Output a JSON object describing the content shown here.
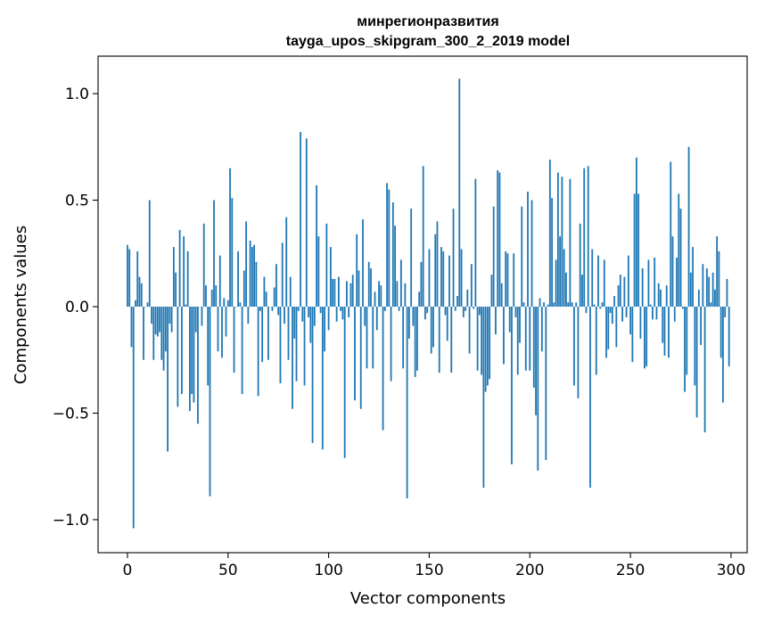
{
  "chart_data": {
    "type": "bar",
    "title": [
      "минрегионразвития",
      "tayga_upos_skipgram_300_2_2019 model"
    ],
    "xlabel": "Vector components",
    "ylabel": "Components values",
    "xlim": [
      -14.6,
      308
    ],
    "ylim": [
      -1.155,
      1.176
    ],
    "xticks": [
      0,
      50,
      100,
      150,
      200,
      250,
      300
    ],
    "xtick_labels": [
      "0",
      "50",
      "100",
      "150",
      "200",
      "250",
      "300"
    ],
    "yticks": [
      -1.0,
      -0.5,
      0.0,
      0.5,
      1.0
    ],
    "ytick_labels": [
      "−1.0",
      "−0.5",
      "0.0",
      "0.5",
      "1.0"
    ],
    "grid": false,
    "color": "#1f77b4",
    "values": [
      0.29,
      0.27,
      -0.19,
      -1.04,
      0.03,
      0.26,
      0.14,
      0.11,
      -0.25,
      0.0,
      0.02,
      0.5,
      -0.08,
      -0.25,
      -0.13,
      -0.14,
      -0.12,
      -0.25,
      -0.3,
      -0.21,
      -0.68,
      -0.08,
      -0.12,
      0.28,
      0.16,
      -0.47,
      0.36,
      -0.41,
      0.33,
      0.01,
      0.26,
      -0.49,
      -0.41,
      -0.45,
      -0.12,
      -0.55,
      0.0,
      -0.09,
      0.39,
      0.1,
      -0.37,
      -0.89,
      0.08,
      0.5,
      0.1,
      -0.21,
      0.24,
      -0.24,
      0.04,
      -0.14,
      0.03,
      0.65,
      0.51,
      -0.31,
      0.0,
      0.26,
      0.02,
      -0.41,
      0.17,
      0.4,
      -0.08,
      0.31,
      0.28,
      0.29,
      0.21,
      -0.42,
      -0.02,
      -0.26,
      0.14,
      0.07,
      -0.25,
      0.0,
      -0.02,
      0.09,
      0.2,
      -0.04,
      -0.36,
      0.3,
      -0.08,
      0.42,
      -0.25,
      0.14,
      -0.48,
      -0.15,
      -0.35,
      -0.02,
      0.82,
      -0.07,
      -0.37,
      0.79,
      -0.05,
      -0.17,
      -0.64,
      -0.09,
      0.57,
      0.33,
      -0.03,
      -0.67,
      -0.21,
      0.39,
      -0.11,
      0.28,
      0.13,
      0.13,
      -0.07,
      0.14,
      -0.02,
      -0.06,
      -0.71,
      0.12,
      -0.05,
      0.11,
      0.15,
      -0.44,
      0.34,
      0.17,
      -0.48,
      0.41,
      -0.09,
      -0.29,
      0.21,
      0.18,
      -0.29,
      0.07,
      -0.11,
      0.12,
      0.1,
      -0.58,
      -0.02,
      0.58,
      0.55,
      -0.35,
      0.49,
      0.38,
      0.12,
      -0.02,
      0.22,
      -0.29,
      0.11,
      -0.9,
      -0.15,
      0.46,
      -0.09,
      -0.33,
      -0.3,
      0.07,
      0.21,
      0.66,
      -0.06,
      -0.03,
      0.27,
      -0.22,
      -0.19,
      0.34,
      0.4,
      -0.31,
      0.28,
      0.26,
      -0.04,
      -0.16,
      0.24,
      -0.31,
      0.46,
      -0.02,
      0.05,
      1.07,
      0.27,
      -0.05,
      -0.02,
      0.08,
      -0.22,
      0.2,
      -0.01,
      0.6,
      -0.3,
      -0.04,
      -0.32,
      -0.85,
      -0.4,
      -0.37,
      -0.34,
      0.15,
      0.47,
      -0.13,
      0.64,
      0.63,
      0.11,
      -0.27,
      0.26,
      0.25,
      -0.12,
      -0.74,
      0.25,
      -0.05,
      -0.32,
      -0.17,
      0.47,
      0.02,
      -0.3,
      0.54,
      -0.3,
      0.5,
      -0.38,
      -0.51,
      -0.77,
      0.04,
      -0.21,
      0.02,
      -0.72,
      0.01,
      0.69,
      0.51,
      0.02,
      0.22,
      0.63,
      0.33,
      0.61,
      0.27,
      0.16,
      0.02,
      0.6,
      0.02,
      -0.37,
      0.02,
      -0.43,
      0.39,
      0.15,
      0.65,
      -0.03,
      0.66,
      -0.85,
      0.27,
      0.01,
      -0.32,
      0.24,
      -0.01,
      0.02,
      0.22,
      -0.24,
      -0.2,
      -0.03,
      -0.08,
      0.05,
      -0.19,
      0.1,
      0.15,
      -0.07,
      0.14,
      -0.05,
      0.24,
      -0.13,
      -0.26,
      0.53,
      0.7,
      0.53,
      -0.15,
      0.18,
      -0.29,
      -0.28,
      0.22,
      0.01,
      -0.06,
      0.23,
      -0.06,
      0.11,
      0.08,
      -0.17,
      -0.23,
      0.1,
      -0.24,
      0.68,
      0.33,
      -0.07,
      0.23,
      0.53,
      0.46,
      -0.01,
      -0.4,
      -0.32,
      0.75,
      0.16,
      0.28,
      -0.37,
      -0.52,
      0.08,
      -0.18,
      0.2,
      -0.59,
      0.18,
      0.14,
      0.02,
      0.16,
      0.08,
      0.33,
      0.26,
      -0.24,
      -0.45,
      -0.05,
      0.13,
      -0.28
    ]
  }
}
